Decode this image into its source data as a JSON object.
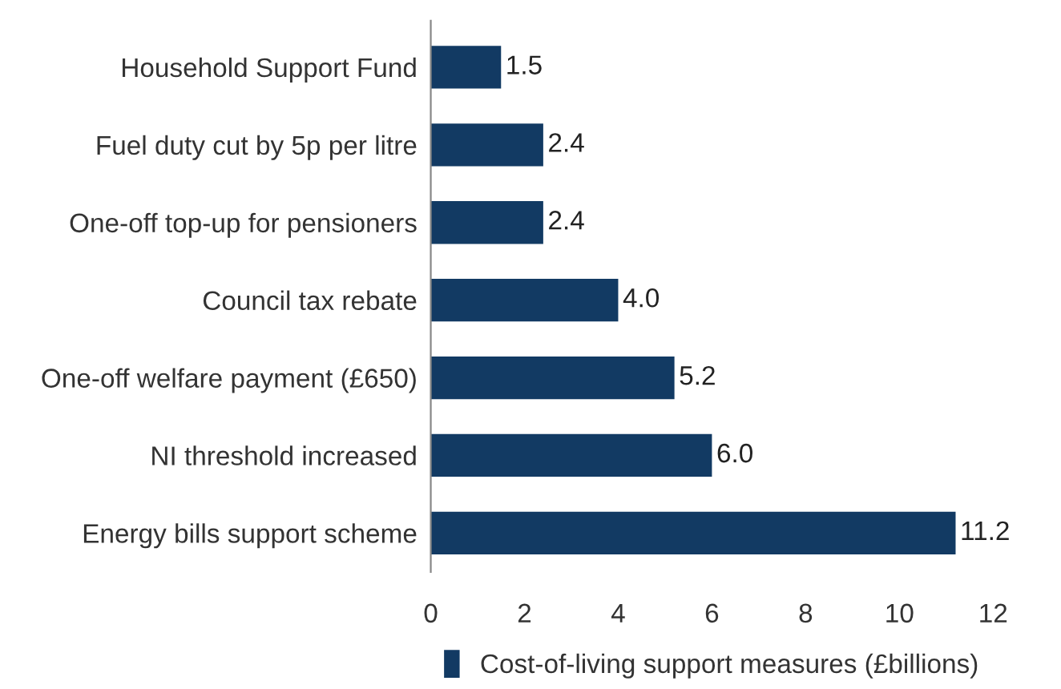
{
  "chart_data": {
    "type": "bar",
    "orientation": "horizontal",
    "categories": [
      "Household Support Fund",
      "Fuel duty cut by 5p per litre",
      "One-off top-up for pensioners",
      "Council tax rebate",
      "One-off welfare payment (£650)",
      "NI threshold increased",
      "Energy bills support scheme"
    ],
    "series": [
      {
        "name": "Cost-of-living support measures (£billions)",
        "color": "#123a63",
        "values": [
          1.5,
          2.4,
          2.4,
          4.0,
          5.2,
          6.0,
          11.2
        ],
        "value_labels": [
          "1.5",
          "2.4",
          "2.4",
          "4.0",
          "5.2",
          "6.0",
          "11.2"
        ]
      }
    ],
    "xlim": [
      0,
      12
    ],
    "xticks": [
      0,
      2,
      4,
      6,
      8,
      10,
      12
    ],
    "grid": false,
    "legend": "bottom"
  }
}
